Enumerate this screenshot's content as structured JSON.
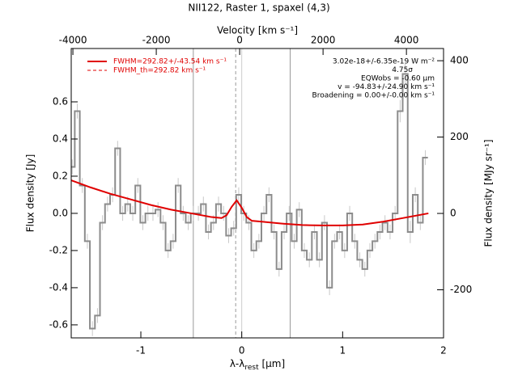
{
  "chart_data": {
    "type": "line",
    "title": "NII122, Raster 1, spaxel (4,3)",
    "x_label": {
      "main": "λ-λ",
      "sub": "rest",
      "unit": " [μm]"
    },
    "x2_label": "Velocity [km s⁻¹]",
    "y_label": "Flux density [Jy]",
    "y2_label": "Flux density [MJy sr⁻¹]",
    "xlim": [
      -1.69,
      2.0
    ],
    "xticks": [
      -1,
      0,
      1,
      2
    ],
    "x2lim": [
      -4040,
      4890
    ],
    "x2ticks": [
      -4000,
      -2000,
      0,
      2000,
      4000
    ],
    "ylim": [
      -0.67,
      0.887
    ],
    "yticks": [
      -0.6,
      -0.4,
      -0.2,
      {
        "value": 0,
        "label": "0.0"
      },
      0.2,
      0.4,
      0.6
    ],
    "y2lim": [
      -326,
      432
    ],
    "y2ticks": [
      -200,
      0,
      200,
      400
    ],
    "vlines": [
      -0.48,
      0,
      0.48
    ],
    "line_center": -0.06,
    "annotations": [
      "3.02e-18+/-6.35e-19 W m⁻²",
      "4.75σ",
      "EQWobs = -0.60 μm",
      "v = -94.83+/-24.90 km s⁻¹",
      "Broadening = 0.00+/-0.00 km s⁻¹"
    ],
    "series": [
      {
        "name": "FWHM=292.82+/-43.54 km s⁻¹",
        "color": "#e00000",
        "style": "solid",
        "x": [
          -1.7,
          -1.5,
          -1.3,
          -1.1,
          -0.9,
          -0.7,
          -0.5,
          -0.3,
          -0.2,
          -0.15,
          -0.1,
          -0.05,
          0,
          0.05,
          0.1,
          0.2,
          0.4,
          0.6,
          0.8,
          1.0,
          1.2,
          1.4,
          1.6,
          1.85
        ],
        "values": [
          0.18,
          0.14,
          0.105,
          0.075,
          0.045,
          0.02,
          0.0,
          -0.02,
          -0.025,
          -0.01,
          0.035,
          0.07,
          0.03,
          -0.02,
          -0.04,
          -0.045,
          -0.055,
          -0.063,
          -0.065,
          -0.065,
          -0.06,
          -0.045,
          -0.025,
          0.0
        ]
      },
      {
        "name": "FWHM_th=292.82 km s⁻¹",
        "color": "#e00000",
        "style": "dashed",
        "x": [],
        "values": []
      },
      {
        "color": "#8c8c8c",
        "x": [
          -1.68,
          -1.63,
          -1.58,
          -1.53,
          -1.48,
          -1.43,
          -1.38,
          -1.33,
          -1.28,
          -1.23,
          -1.18,
          -1.13,
          -1.08,
          -1.03,
          -0.98,
          -0.93,
          -0.88,
          -0.83,
          -0.78,
          -0.73,
          -0.68,
          -0.63,
          -0.58,
          -0.53,
          -0.48,
          -0.43,
          -0.38,
          -0.33,
          -0.28,
          -0.23,
          -0.18,
          -0.13,
          -0.08,
          -0.03,
          0.02,
          0.07,
          0.12,
          0.17,
          0.22,
          0.27,
          0.32,
          0.37,
          0.42,
          0.47,
          0.52,
          0.57,
          0.62,
          0.67,
          0.72,
          0.77,
          0.82,
          0.87,
          0.92,
          0.97,
          1.02,
          1.07,
          1.12,
          1.17,
          1.22,
          1.27,
          1.32,
          1.37,
          1.42,
          1.47,
          1.52,
          1.57,
          1.62,
          1.67,
          1.72,
          1.77,
          1.82
        ],
        "values": [
          0.25,
          0.55,
          0.15,
          -0.15,
          -0.62,
          -0.55,
          -0.05,
          0.05,
          0.1,
          0.35,
          0.0,
          0.05,
          0.0,
          0.15,
          -0.05,
          0.0,
          0.0,
          0.02,
          -0.05,
          -0.2,
          -0.15,
          0.15,
          0.0,
          -0.05,
          0.0,
          0.0,
          0.05,
          -0.1,
          -0.05,
          0.05,
          0.0,
          -0.12,
          -0.08,
          0.1,
          0.0,
          -0.05,
          -0.2,
          -0.15,
          0.0,
          0.1,
          -0.1,
          -0.3,
          -0.1,
          0.0,
          -0.15,
          0.02,
          -0.2,
          -0.25,
          -0.1,
          -0.25,
          -0.05,
          -0.4,
          -0.15,
          -0.1,
          -0.2,
          0.0,
          -0.15,
          -0.25,
          -0.3,
          -0.2,
          -0.15,
          -0.1,
          -0.05,
          -0.1,
          0.0,
          0.55,
          0.75,
          -0.1,
          0.1,
          -0.05,
          0.3
        ],
        "errors": [
          0.04,
          0.04,
          0.04,
          0.04,
          0.04,
          0.04,
          0.04,
          0.04,
          0.04,
          0.04,
          0.04,
          0.04,
          0.04,
          0.04,
          0.04,
          0.04,
          0.04,
          0.04,
          0.04,
          0.04,
          0.04,
          0.04,
          0.04,
          0.04,
          0.04,
          0.04,
          0.04,
          0.04,
          0.04,
          0.04,
          0.04,
          0.04,
          0.04,
          0.04,
          0.04,
          0.04,
          0.04,
          0.04,
          0.04,
          0.04,
          0.04,
          0.04,
          0.04,
          0.04,
          0.04,
          0.04,
          0.04,
          0.04,
          0.04,
          0.04,
          0.04,
          0.04,
          0.04,
          0.04,
          0.04,
          0.04,
          0.04,
          0.04,
          0.04,
          0.04,
          0.04,
          0.04,
          0.04,
          0.04,
          0.04,
          0.06,
          0.06,
          0.06,
          0.04,
          0.04,
          0.04
        ]
      }
    ]
  }
}
